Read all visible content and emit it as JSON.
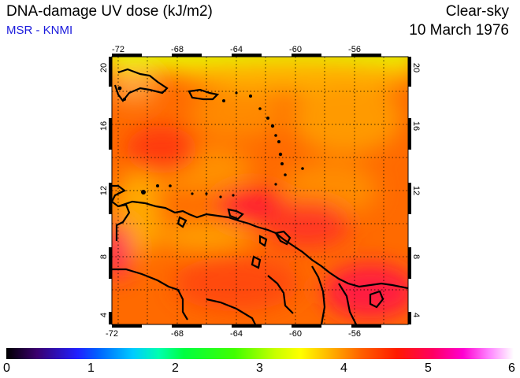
{
  "header": {
    "title": "DNA-damage UV dose (kJ/m2)",
    "subtitle": "MSR - KNMI",
    "sky": "Clear-sky",
    "date": "10 March 1976"
  },
  "map": {
    "lon_labels": [
      "-72",
      "-68",
      "-64",
      "-60",
      "-56"
    ],
    "lat_labels": [
      "4",
      "8",
      "12",
      "16",
      "20"
    ]
  },
  "colorbar": {
    "labels": [
      "0",
      "1",
      "2",
      "3",
      "4",
      "5",
      "6"
    ]
  },
  "colors": {
    "title_blue": "#1a1adc",
    "field_base": "#ff6a00"
  }
}
